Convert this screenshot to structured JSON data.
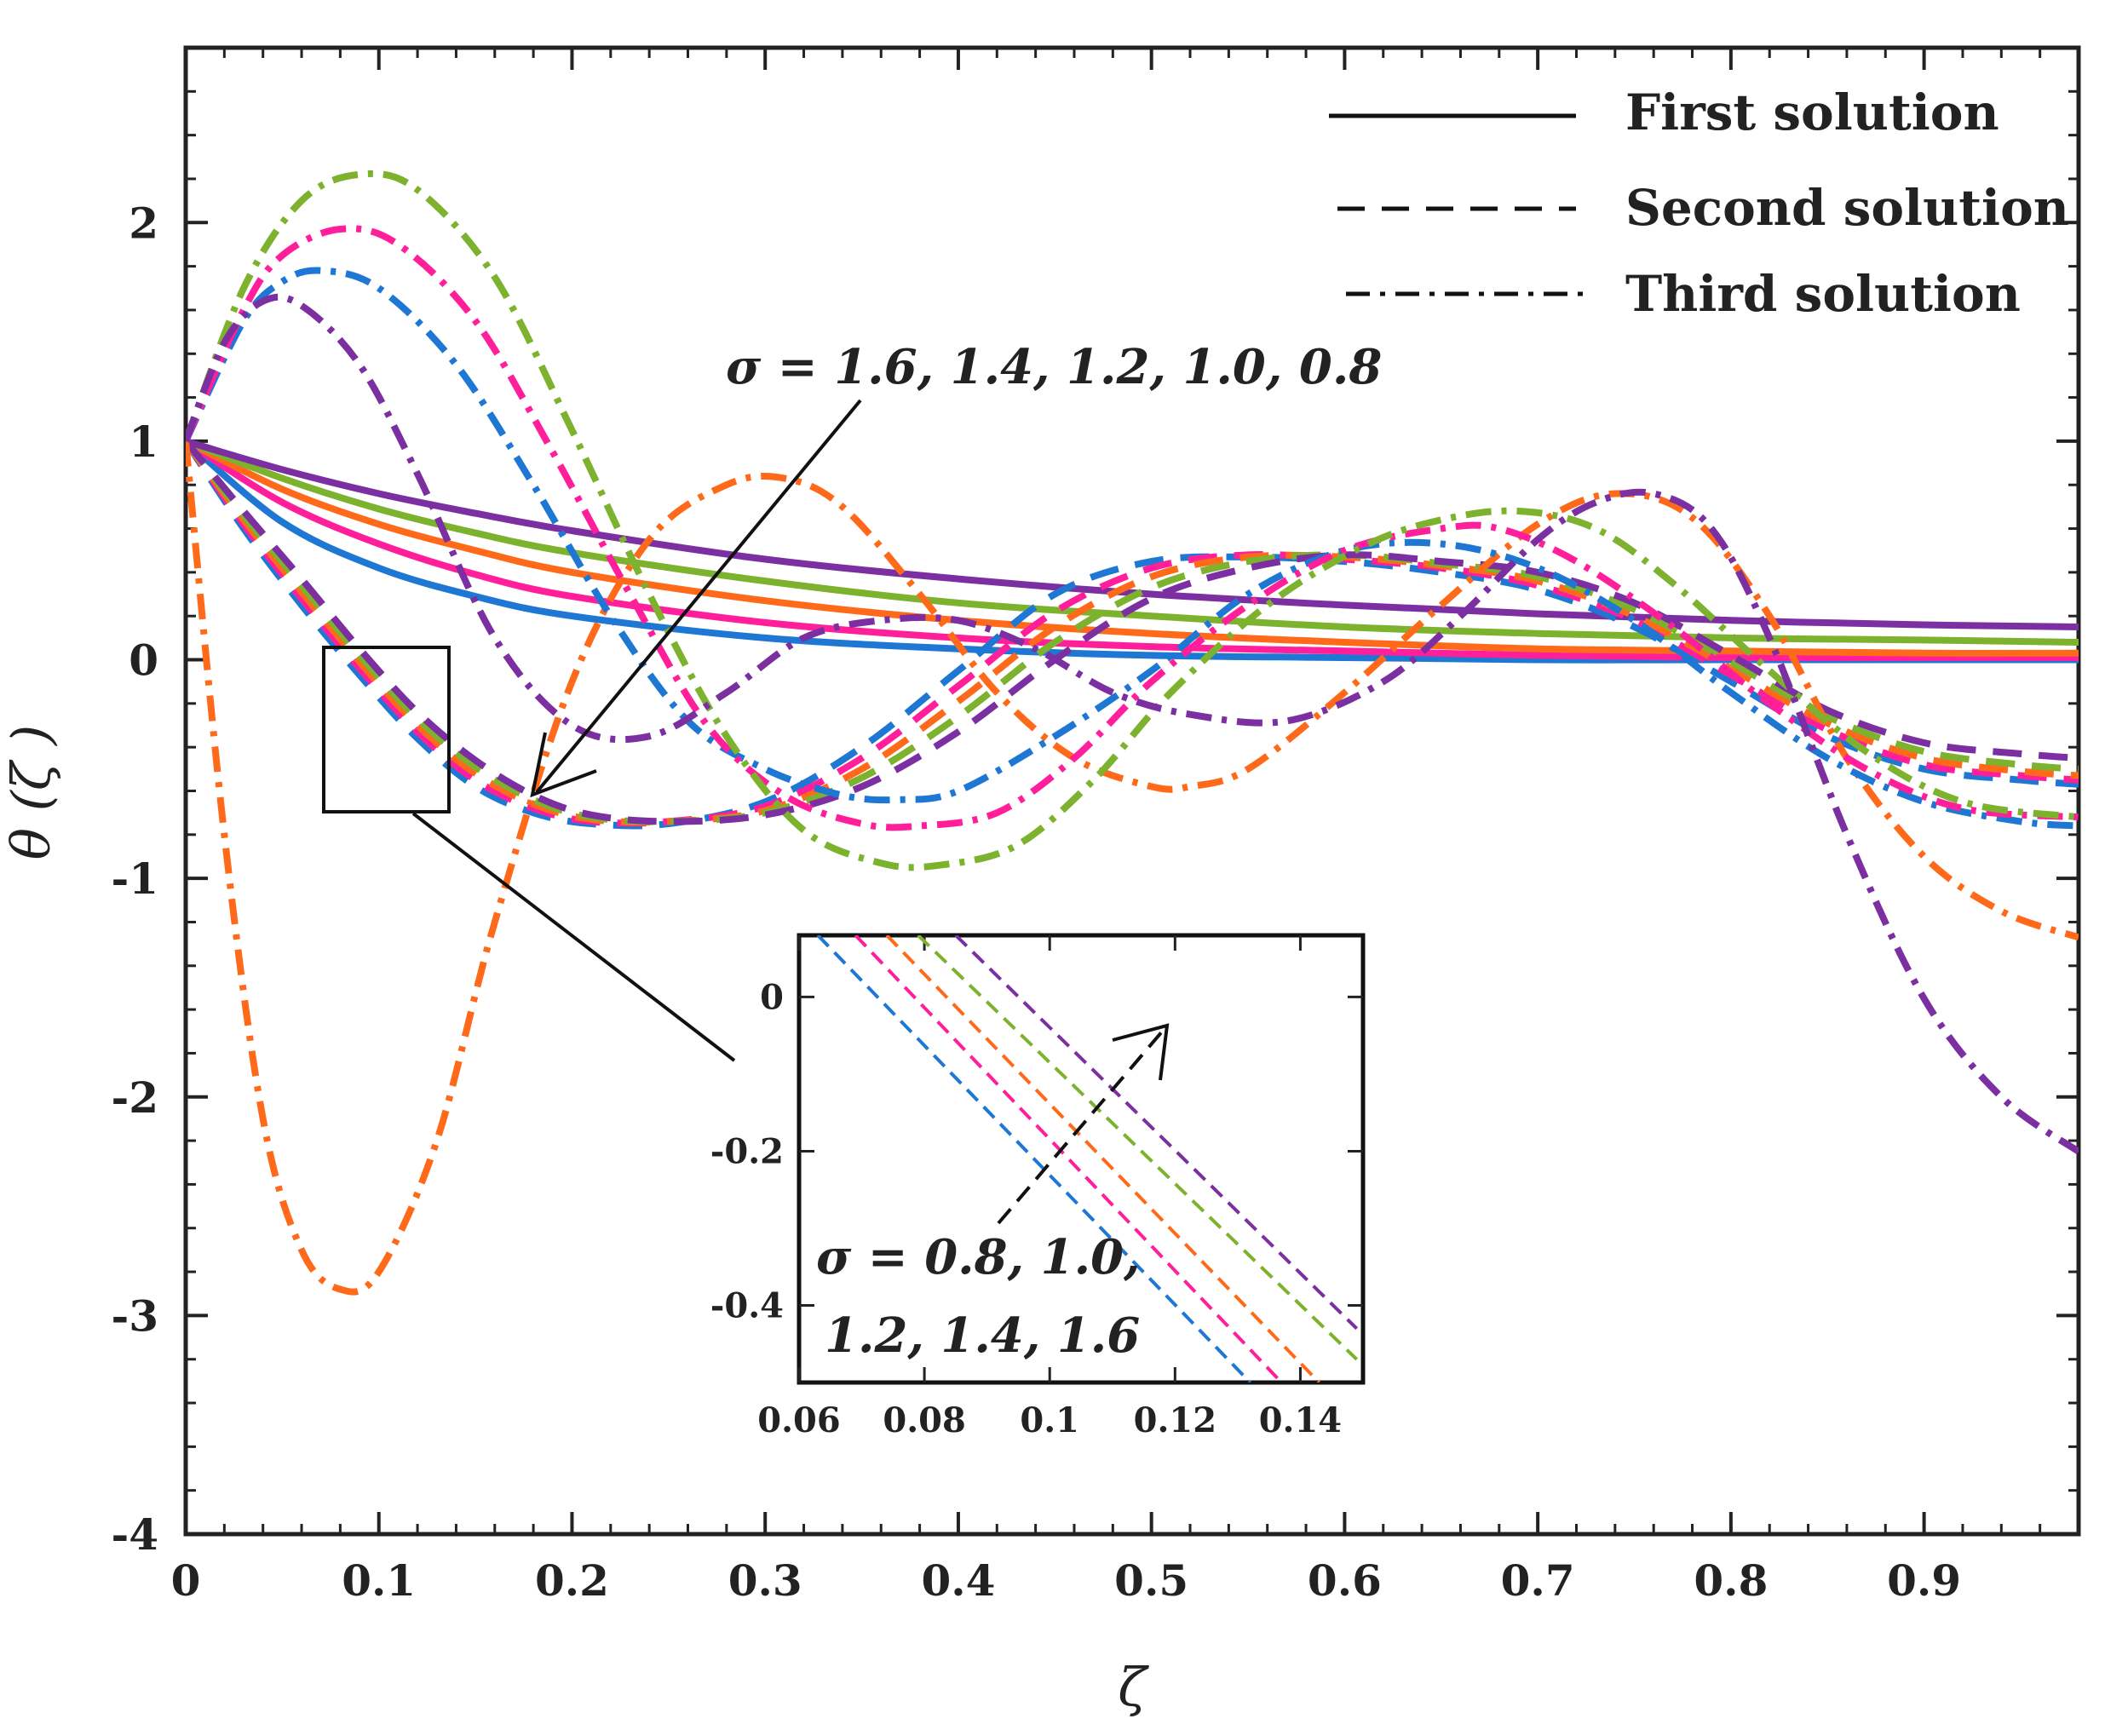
{
  "chart_data": {
    "type": "line",
    "xlabel": "ζ",
    "ylabel": "θ (ζ )",
    "xlim": [
      0,
      0.98
    ],
    "ylim": [
      -4,
      2.8
    ],
    "x_ticks": [
      "0",
      "0.1",
      "0.2",
      "0.3",
      "0.4",
      "0.5",
      "0.6",
      "0.7",
      "0.8",
      "0.9"
    ],
    "y_ticks": [
      "2",
      "1",
      "0",
      "-1",
      "-2",
      "-3",
      "-4"
    ],
    "legend": {
      "position": "top-right",
      "entries": [
        {
          "label": "First solution",
          "style": "solid"
        },
        {
          "label": "Second solution",
          "style": "dashed"
        },
        {
          "label": "Third solution",
          "style": "dash-dot"
        }
      ]
    },
    "sigma_values": [
      0.8,
      1.0,
      1.2,
      1.4,
      1.6
    ],
    "colors": [
      "#1f77d4",
      "#ff1f9b",
      "#ff6a1a",
      "#7cb22e",
      "#7b2fa1"
    ],
    "annotations": [
      {
        "text": "σ = 1.6, 1.4, 1.2, 1.0, 0.8",
        "points_to": [
          0.18,
          -0.62
        ]
      },
      {
        "text_line1": "σ = 0.8, 1.0,",
        "text_line2": "1.2, 1.4, 1.6"
      }
    ],
    "series": [
      {
        "name": "First solution σ=0.8",
        "style": "solid",
        "color": "#1f77d4",
        "x": [
          0,
          0.05,
          0.1,
          0.15,
          0.2,
          0.3,
          0.4,
          0.5,
          0.6,
          0.7,
          0.8,
          0.9,
          0.98
        ],
        "y": [
          1.0,
          0.63,
          0.42,
          0.29,
          0.2,
          0.1,
          0.05,
          0.02,
          0.01,
          0.0,
          0.0,
          0.0,
          0.0
        ]
      },
      {
        "name": "First solution σ=1.0",
        "style": "solid",
        "color": "#ff1f9b",
        "x": [
          0,
          0.05,
          0.1,
          0.15,
          0.2,
          0.3,
          0.4,
          0.5,
          0.6,
          0.7,
          0.8,
          0.9,
          0.98
        ],
        "y": [
          1.0,
          0.72,
          0.53,
          0.39,
          0.29,
          0.17,
          0.1,
          0.06,
          0.04,
          0.02,
          0.01,
          0.01,
          0.01
        ]
      },
      {
        "name": "First solution σ=1.2",
        "style": "solid",
        "color": "#ff6a1a",
        "x": [
          0,
          0.05,
          0.1,
          0.15,
          0.2,
          0.3,
          0.4,
          0.5,
          0.6,
          0.7,
          0.8,
          0.9,
          0.98
        ],
        "y": [
          1.0,
          0.78,
          0.62,
          0.5,
          0.4,
          0.27,
          0.18,
          0.12,
          0.08,
          0.05,
          0.04,
          0.03,
          0.03
        ]
      },
      {
        "name": "First solution σ=1.4",
        "style": "solid",
        "color": "#7cb22e",
        "x": [
          0,
          0.05,
          0.1,
          0.15,
          0.2,
          0.3,
          0.4,
          0.5,
          0.6,
          0.7,
          0.8,
          0.9,
          0.98
        ],
        "y": [
          1.0,
          0.83,
          0.69,
          0.58,
          0.49,
          0.36,
          0.26,
          0.2,
          0.15,
          0.12,
          0.1,
          0.09,
          0.08
        ]
      },
      {
        "name": "First solution σ=1.6",
        "style": "solid",
        "color": "#7b2fa1",
        "x": [
          0,
          0.05,
          0.1,
          0.15,
          0.2,
          0.3,
          0.4,
          0.5,
          0.6,
          0.7,
          0.8,
          0.9,
          0.98
        ],
        "y": [
          1.0,
          0.87,
          0.76,
          0.67,
          0.59,
          0.46,
          0.37,
          0.3,
          0.25,
          0.21,
          0.18,
          0.16,
          0.15
        ]
      },
      {
        "name": "Second solution σ=0.8",
        "style": "dashed",
        "color": "#1f77d4",
        "x": [
          0,
          0.03,
          0.06,
          0.09,
          0.12,
          0.15,
          0.18,
          0.21,
          0.25,
          0.3,
          0.35,
          0.4,
          0.45,
          0.5,
          0.55,
          0.6,
          0.65,
          0.7,
          0.75,
          0.8,
          0.85,
          0.9,
          0.95,
          0.98
        ],
        "y": [
          1.0,
          0.6,
          0.25,
          -0.07,
          -0.36,
          -0.58,
          -0.7,
          -0.75,
          -0.75,
          -0.65,
          -0.4,
          -0.05,
          0.3,
          0.45,
          0.47,
          0.45,
          0.4,
          0.32,
          0.15,
          -0.1,
          -0.35,
          -0.5,
          -0.55,
          -0.57
        ]
      },
      {
        "name": "Second solution σ=1.0",
        "style": "dashed",
        "color": "#ff1f9b",
        "x": [
          0,
          0.03,
          0.06,
          0.09,
          0.12,
          0.15,
          0.18,
          0.21,
          0.25,
          0.3,
          0.35,
          0.4,
          0.45,
          0.5,
          0.55,
          0.6,
          0.65,
          0.7,
          0.75,
          0.8,
          0.85,
          0.9,
          0.95,
          0.98
        ],
        "y": [
          1.0,
          0.62,
          0.28,
          -0.04,
          -0.33,
          -0.55,
          -0.68,
          -0.74,
          -0.74,
          -0.67,
          -0.45,
          -0.12,
          0.22,
          0.42,
          0.48,
          0.46,
          0.42,
          0.34,
          0.18,
          -0.07,
          -0.32,
          -0.48,
          -0.53,
          -0.55
        ]
      },
      {
        "name": "Second solution σ=1.2",
        "style": "dashed",
        "color": "#ff6a1a",
        "x": [
          0,
          0.03,
          0.06,
          0.09,
          0.12,
          0.15,
          0.18,
          0.21,
          0.25,
          0.3,
          0.35,
          0.4,
          0.45,
          0.5,
          0.55,
          0.6,
          0.65,
          0.7,
          0.75,
          0.8,
          0.85,
          0.9,
          0.95,
          0.98
        ],
        "y": [
          1.0,
          0.64,
          0.31,
          -0.01,
          -0.3,
          -0.52,
          -0.66,
          -0.73,
          -0.74,
          -0.69,
          -0.5,
          -0.19,
          0.15,
          0.38,
          0.47,
          0.47,
          0.43,
          0.36,
          0.2,
          -0.04,
          -0.29,
          -0.45,
          -0.51,
          -0.53
        ]
      },
      {
        "name": "Second solution σ=1.4",
        "style": "dashed",
        "color": "#7cb22e",
        "x": [
          0,
          0.03,
          0.06,
          0.09,
          0.12,
          0.15,
          0.18,
          0.21,
          0.25,
          0.3,
          0.35,
          0.4,
          0.45,
          0.5,
          0.55,
          0.6,
          0.65,
          0.7,
          0.75,
          0.8,
          0.85,
          0.9,
          0.95,
          0.98
        ],
        "y": [
          1.0,
          0.66,
          0.34,
          0.02,
          -0.27,
          -0.49,
          -0.64,
          -0.72,
          -0.74,
          -0.7,
          -0.54,
          -0.26,
          0.08,
          0.33,
          0.45,
          0.48,
          0.44,
          0.38,
          0.23,
          -0.01,
          -0.26,
          -0.42,
          -0.48,
          -0.5
        ]
      },
      {
        "name": "Second solution σ=1.6",
        "style": "dashed",
        "color": "#7b2fa1",
        "x": [
          0,
          0.03,
          0.06,
          0.09,
          0.12,
          0.15,
          0.18,
          0.21,
          0.25,
          0.3,
          0.35,
          0.4,
          0.45,
          0.5,
          0.55,
          0.6,
          0.65,
          0.7,
          0.75,
          0.8,
          0.85,
          0.9,
          0.95,
          0.98
        ],
        "y": [
          1.0,
          0.68,
          0.37,
          0.05,
          -0.24,
          -0.46,
          -0.62,
          -0.71,
          -0.74,
          -0.71,
          -0.58,
          -0.33,
          0.0,
          0.28,
          0.42,
          0.48,
          0.45,
          0.4,
          0.26,
          0.02,
          -0.23,
          -0.38,
          -0.43,
          -0.45
        ]
      },
      {
        "name": "Third solution σ=0.8",
        "style": "dashdot",
        "color": "#ff6a1a",
        "x": [
          0,
          0.02,
          0.04,
          0.06,
          0.08,
          0.1,
          0.13,
          0.16,
          0.2,
          0.24,
          0.28,
          0.31,
          0.34,
          0.38,
          0.42,
          0.46,
          0.5,
          0.52,
          0.55,
          0.6,
          0.65,
          0.7,
          0.74,
          0.78,
          0.82,
          0.86,
          0.9,
          0.94,
          0.98
        ],
        "y": [
          1.0,
          -0.8,
          -2.1,
          -2.7,
          -2.88,
          -2.8,
          -2.2,
          -1.2,
          -0.1,
          0.55,
          0.8,
          0.83,
          0.7,
          0.3,
          -0.15,
          -0.45,
          -0.58,
          -0.58,
          -0.5,
          -0.15,
          0.25,
          0.62,
          0.76,
          0.65,
          0.2,
          -0.45,
          -0.9,
          -1.15,
          -1.27
        ]
      },
      {
        "name": "Third solution σ=1.0",
        "style": "dashdot",
        "color": "#1f77d4",
        "x": [
          0,
          0.03,
          0.05,
          0.07,
          0.1,
          0.14,
          0.18,
          0.22,
          0.26,
          0.3,
          0.34,
          0.37,
          0.4,
          0.45,
          0.5,
          0.55,
          0.6,
          0.65,
          0.7,
          0.75,
          0.8,
          0.85,
          0.9,
          0.95,
          0.98
        ],
        "y": [
          1.0,
          1.55,
          1.73,
          1.78,
          1.7,
          1.35,
          0.8,
          0.2,
          -0.28,
          -0.5,
          -0.62,
          -0.64,
          -0.6,
          -0.35,
          -0.05,
          0.3,
          0.5,
          0.53,
          0.42,
          0.18,
          -0.15,
          -0.45,
          -0.65,
          -0.74,
          -0.76
        ]
      },
      {
        "name": "Third solution σ=1.2",
        "style": "dashdot",
        "color": "#ff1f9b",
        "x": [
          0,
          0.03,
          0.05,
          0.08,
          0.11,
          0.15,
          0.19,
          0.23,
          0.27,
          0.31,
          0.35,
          0.38,
          0.42,
          0.46,
          0.5,
          0.55,
          0.6,
          0.65,
          0.68,
          0.72,
          0.77,
          0.82,
          0.87,
          0.92,
          0.98
        ],
        "y": [
          1.0,
          1.6,
          1.85,
          1.97,
          1.9,
          1.55,
          0.95,
          0.3,
          -0.3,
          -0.62,
          -0.75,
          -0.76,
          -0.7,
          -0.45,
          -0.1,
          0.25,
          0.5,
          0.6,
          0.6,
          0.45,
          0.15,
          -0.2,
          -0.5,
          -0.68,
          -0.72
        ]
      },
      {
        "name": "Third solution σ=1.4",
        "style": "dashdot",
        "color": "#7cb22e",
        "x": [
          0,
          0.03,
          0.06,
          0.09,
          0.12,
          0.16,
          0.2,
          0.24,
          0.28,
          0.32,
          0.36,
          0.39,
          0.43,
          0.47,
          0.51,
          0.56,
          0.61,
          0.65,
          0.69,
          0.73,
          0.77,
          0.82,
          0.87,
          0.92,
          0.98
        ],
        "y": [
          1.0,
          1.7,
          2.1,
          2.22,
          2.15,
          1.75,
          1.05,
          0.3,
          -0.35,
          -0.78,
          -0.93,
          -0.94,
          -0.85,
          -0.55,
          -0.15,
          0.25,
          0.52,
          0.64,
          0.68,
          0.6,
          0.35,
          -0.05,
          -0.42,
          -0.65,
          -0.72
        ]
      },
      {
        "name": "Third solution σ=1.6",
        "style": "dashdot",
        "color": "#7b2fa1",
        "x": [
          0,
          0.02,
          0.04,
          0.06,
          0.09,
          0.12,
          0.16,
          0.2,
          0.24,
          0.28,
          0.32,
          0.36,
          0.4,
          0.44,
          0.48,
          0.52,
          0.57,
          0.62,
          0.66,
          0.7,
          0.73,
          0.76,
          0.79,
          0.82,
          0.86,
          0.9,
          0.94,
          0.98
        ],
        "y": [
          1.0,
          1.45,
          1.64,
          1.62,
          1.35,
          0.85,
          0.1,
          -0.3,
          -0.35,
          -0.15,
          0.1,
          0.18,
          0.18,
          0.05,
          -0.15,
          -0.25,
          -0.28,
          -0.1,
          0.2,
          0.55,
          0.72,
          0.76,
          0.6,
          0.1,
          -0.8,
          -1.55,
          -2.0,
          -2.25
        ]
      }
    ],
    "inset": {
      "xlim": [
        0.06,
        0.15
      ],
      "ylim": [
        -0.5,
        0.08
      ],
      "x_ticks": [
        "0.06",
        "0.08",
        "0.1",
        "0.12",
        "0.14"
      ],
      "y_ticks": [
        "0",
        "-0.2",
        "-0.4"
      ],
      "series": [
        {
          "color": "#1f77d4",
          "x": [
            0.063,
            0.132
          ],
          "y": [
            0.08,
            -0.5
          ]
        },
        {
          "color": "#ff1f9b",
          "x": [
            0.069,
            0.137
          ],
          "y": [
            0.08,
            -0.5
          ]
        },
        {
          "color": "#ff6a1a",
          "x": [
            0.074,
            0.143
          ],
          "y": [
            0.08,
            -0.5
          ]
        },
        {
          "color": "#7cb22e",
          "x": [
            0.079,
            0.149
          ],
          "y": [
            0.08,
            -0.47
          ]
        },
        {
          "color": "#7b2fa1",
          "x": [
            0.085,
            0.149
          ],
          "y": [
            0.08,
            -0.43
          ]
        }
      ]
    }
  }
}
